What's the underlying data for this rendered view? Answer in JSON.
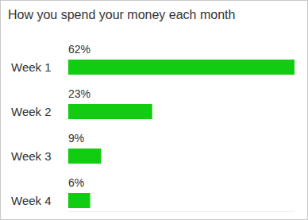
{
  "chart_data": {
    "type": "bar",
    "title": "How you spend your money each month",
    "orientation": "horizontal",
    "categories": [
      "Week 1",
      "Week 2",
      "Week 3",
      "Week 4"
    ],
    "values": [
      62,
      23,
      9,
      6
    ],
    "value_labels": [
      "62%",
      "23%",
      "9%",
      "6%"
    ],
    "color": "#12cc12",
    "xlim": [
      0,
      62
    ],
    "data_labels": true,
    "tick_labels": "y",
    "grid": false
  }
}
